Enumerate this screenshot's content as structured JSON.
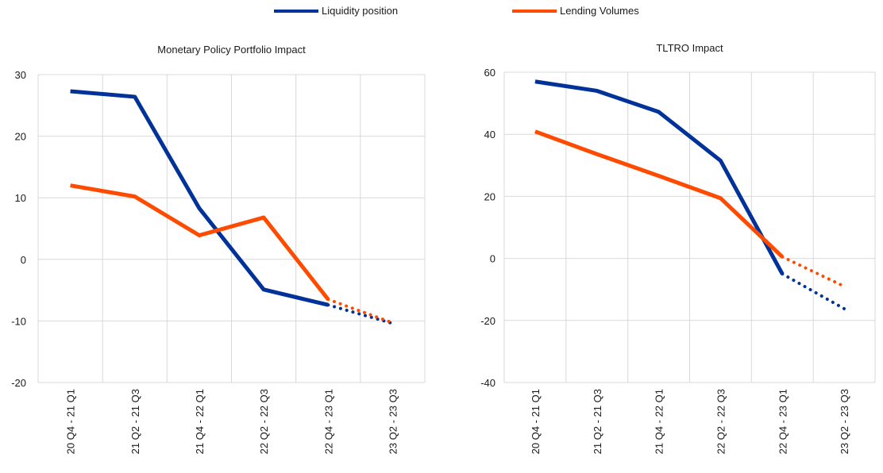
{
  "legend": {
    "liquidity": "Liquidity position",
    "lending": "Lending Volumes"
  },
  "colors": {
    "liquidity": "#003299",
    "lending": "#ff4b00",
    "grid": "#d9d9d9"
  },
  "chart_data": [
    {
      "type": "line",
      "title": "Monetary Policy Portfolio Impact",
      "categories": [
        "20 Q4 - 21 Q1",
        "21 Q2 - 21 Q3",
        "21 Q4 - 22 Q1",
        "22 Q2 - 22 Q3",
        "22 Q4 - 23 Q1",
        "23 Q2 - 23 Q3"
      ],
      "ylim": [
        -20,
        30
      ],
      "yticks": [
        -20,
        -10,
        0,
        10,
        20,
        30
      ],
      "grid": true,
      "legend_position": "top",
      "series": [
        {
          "name": "Liquidity position",
          "color": "#003299",
          "values": [
            27.3,
            26.4,
            8.3,
            -4.9,
            -7.4,
            -10.4
          ],
          "forecast_from": 4
        },
        {
          "name": "Lending Volumes",
          "color": "#ff4b00",
          "values": [
            12.0,
            10.2,
            3.9,
            6.8,
            -6.5,
            -10.3
          ],
          "forecast_from": 4
        }
      ]
    },
    {
      "type": "line",
      "title": "TLTRO Impact",
      "categories": [
        "20 Q4 - 21 Q1",
        "21 Q2 - 21 Q3",
        "21 Q4 - 22 Q1",
        "22 Q2 - 22 Q3",
        "22 Q4 - 23 Q1",
        "23 Q2 - 23 Q3"
      ],
      "ylim": [
        -40,
        60
      ],
      "yticks": [
        -40,
        -20,
        0,
        20,
        40,
        60
      ],
      "grid": true,
      "legend_position": "top",
      "series": [
        {
          "name": "Liquidity position",
          "color": "#003299",
          "values": [
            57.0,
            54.0,
            47.2,
            31.5,
            -5.0,
            -16.2
          ],
          "forecast_from": 4
        },
        {
          "name": "Lending Volumes",
          "color": "#ff4b00",
          "values": [
            40.9,
            33.6,
            26.6,
            19.4,
            0.5,
            -9.0
          ],
          "forecast_from": 4
        }
      ]
    }
  ]
}
